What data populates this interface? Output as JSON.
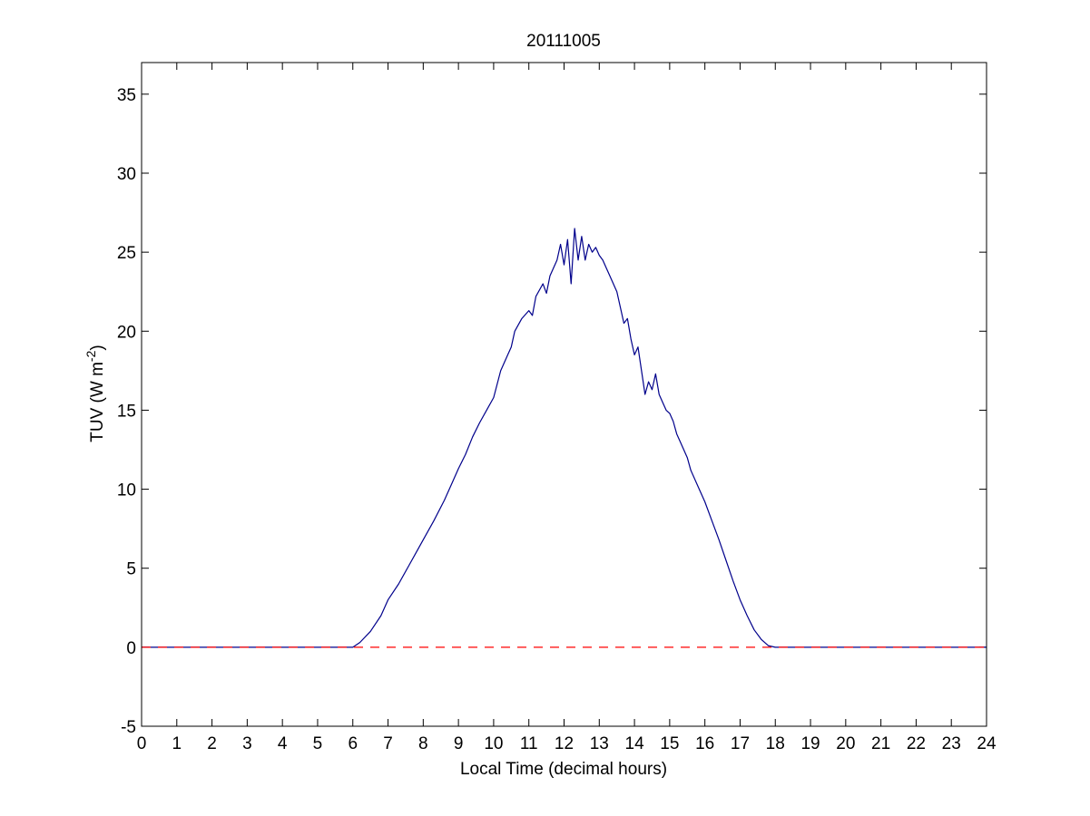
{
  "chart_data": {
    "type": "line",
    "title": "20111005",
    "xlabel": "Local Time (decimal hours)",
    "ylabel": {
      "main": "TUV (W m",
      "superscript": "-2",
      "close": ")"
    },
    "xlim": [
      0,
      24
    ],
    "ylim": [
      -5,
      37
    ],
    "xticks": [
      0,
      1,
      2,
      3,
      4,
      5,
      6,
      7,
      8,
      9,
      10,
      11,
      12,
      13,
      14,
      15,
      16,
      17,
      18,
      19,
      20,
      21,
      22,
      23,
      24
    ],
    "yticks": [
      -5,
      0,
      5,
      10,
      15,
      20,
      25,
      30,
      35
    ],
    "grid": false,
    "legend": "none",
    "series": [
      {
        "style": "solid",
        "color": "#00008b",
        "x": [
          0,
          6.0,
          6.2,
          6.5,
          6.8,
          7.0,
          7.3,
          7.6,
          7.8,
          8.0,
          8.3,
          8.6,
          8.8,
          9.0,
          9.2,
          9.4,
          9.6,
          9.8,
          10.0,
          10.2,
          10.4,
          10.5,
          10.6,
          10.8,
          11.0,
          11.1,
          11.2,
          11.4,
          11.5,
          11.6,
          11.8,
          11.9,
          12.0,
          12.1,
          12.2,
          12.3,
          12.4,
          12.5,
          12.6,
          12.7,
          12.8,
          12.9,
          13.0,
          13.1,
          13.2,
          13.3,
          13.4,
          13.5,
          13.6,
          13.7,
          13.8,
          13.9,
          14.0,
          14.1,
          14.2,
          14.3,
          14.4,
          14.5,
          14.6,
          14.7,
          14.8,
          14.9,
          15.0,
          15.1,
          15.2,
          15.3,
          15.4,
          15.5,
          15.6,
          15.8,
          16.0,
          16.2,
          16.4,
          16.6,
          16.8,
          17.0,
          17.2,
          17.4,
          17.6,
          17.8,
          18.0,
          24
        ],
        "y": [
          0,
          0,
          0.3,
          1.0,
          2.0,
          3.0,
          4.0,
          5.2,
          6.0,
          6.8,
          8.0,
          9.3,
          10.3,
          11.3,
          12.2,
          13.3,
          14.2,
          15.0,
          15.8,
          17.5,
          18.5,
          19.0,
          20.0,
          20.8,
          21.3,
          21.0,
          22.2,
          23.0,
          22.4,
          23.5,
          24.5,
          25.5,
          24.2,
          25.8,
          23.0,
          26.5,
          24.5,
          26.0,
          24.5,
          25.5,
          25.0,
          25.3,
          24.8,
          24.5,
          24.0,
          23.5,
          23.0,
          22.5,
          21.5,
          20.5,
          20.8,
          19.5,
          18.5,
          19.0,
          17.5,
          16.0,
          16.8,
          16.3,
          17.3,
          16.0,
          15.5,
          15.0,
          14.8,
          14.3,
          13.5,
          13.0,
          12.5,
          12.0,
          11.2,
          10.2,
          9.2,
          8.0,
          6.8,
          5.5,
          4.2,
          3.0,
          2.0,
          1.1,
          0.5,
          0.1,
          0,
          0
        ]
      },
      {
        "style": "dashed",
        "color": "#ff0000",
        "x": [
          0,
          24
        ],
        "y": [
          0,
          0
        ]
      }
    ]
  }
}
